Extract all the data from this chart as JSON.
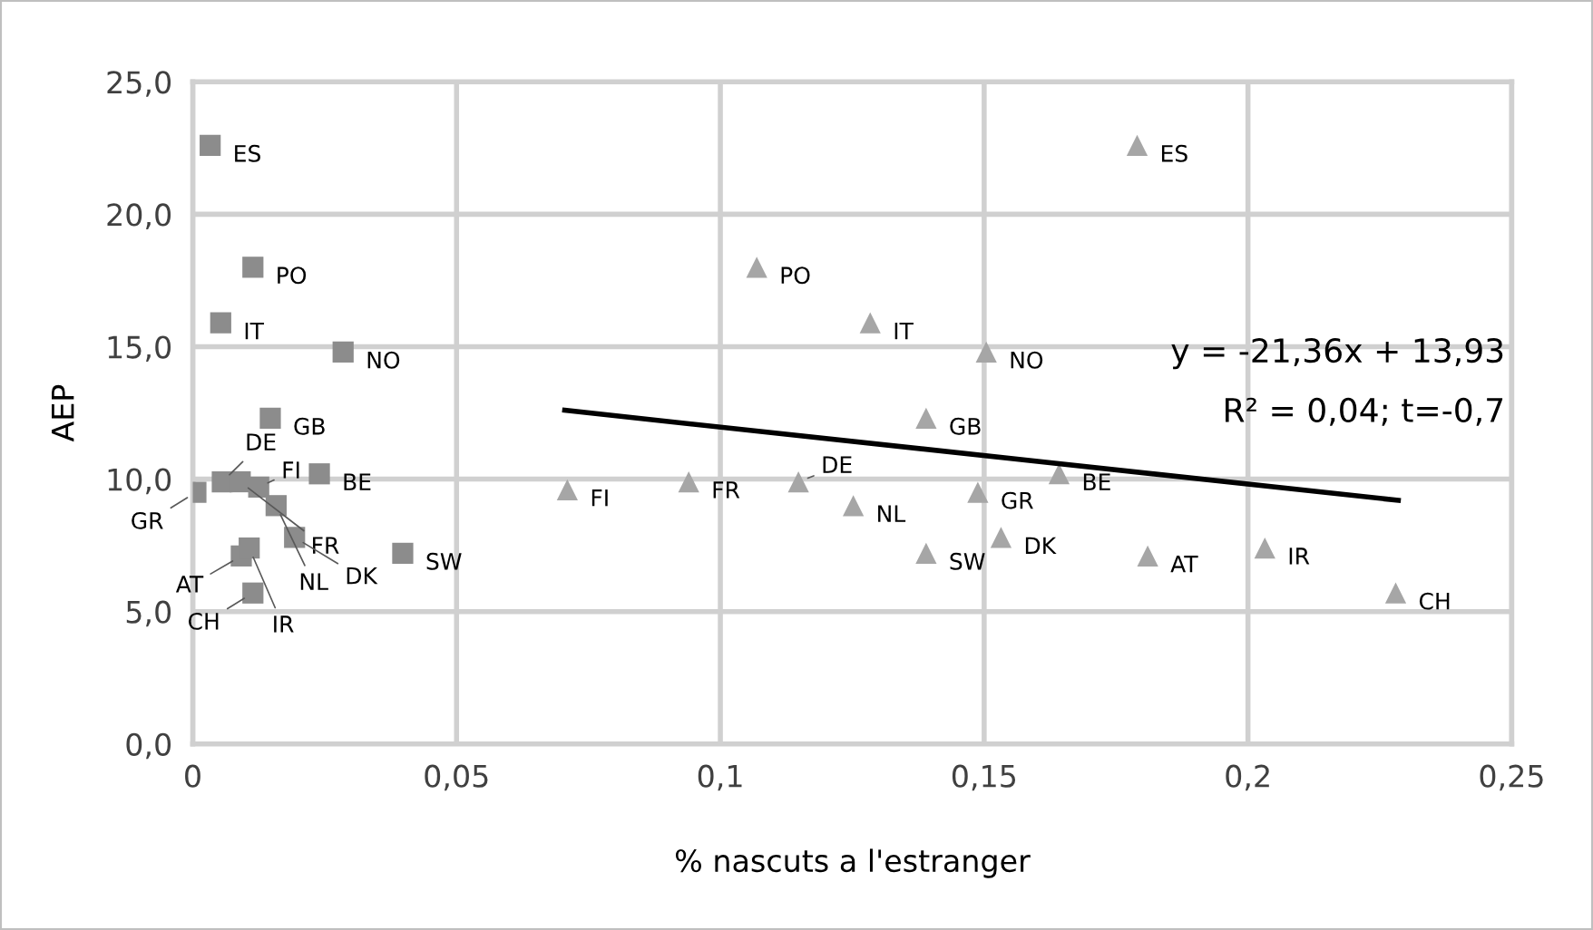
{
  "chart_data": {
    "type": "scatter",
    "xlabel": "% nascuts a l'estranger",
    "ylabel": "AEP",
    "xlim": [
      0,
      0.25
    ],
    "ylim": [
      0,
      25
    ],
    "xticks": [
      {
        "value": 0,
        "label": "0"
      },
      {
        "value": 0.05,
        "label": "0,05"
      },
      {
        "value": 0.1,
        "label": "0,1"
      },
      {
        "value": 0.15,
        "label": "0,15"
      },
      {
        "value": 0.2,
        "label": "0,2"
      },
      {
        "value": 0.25,
        "label": "0,25"
      }
    ],
    "yticks": [
      {
        "value": 0,
        "label": "0,0"
      },
      {
        "value": 5,
        "label": "5,0"
      },
      {
        "value": 10,
        "label": "10,0"
      },
      {
        "value": 15,
        "label": "15,0"
      },
      {
        "value": 20,
        "label": "20,0"
      },
      {
        "value": 25,
        "label": "25,0"
      }
    ],
    "grid": true,
    "legend": false,
    "series": [
      {
        "marker": "square",
        "color": "#8c8c8c",
        "x": [
          0.0033,
          0.0114,
          0.0053,
          0.0285,
          0.0147,
          0.024,
          0.0056,
          0.009,
          0.0006,
          0.0125,
          0.0158,
          0.0193,
          0.0092,
          0.0107,
          0.0114,
          0.0398
        ],
        "values": [
          22.6,
          18.0,
          15.9,
          14.8,
          12.3,
          10.2,
          9.9,
          9.9,
          9.5,
          9.7,
          9.0,
          7.8,
          7.1,
          7.4,
          5.7,
          7.2
        ]
      },
      {
        "marker": "triangle",
        "color": "#a6a6a6",
        "x": [
          0.179,
          0.1069,
          0.1284,
          0.1504,
          0.139,
          0.1642,
          0.1148,
          0.094,
          0.1488,
          0.071,
          0.1252,
          0.1532,
          0.181,
          0.2032,
          0.228,
          0.139
        ],
        "values": [
          22.6,
          18.0,
          15.9,
          14.8,
          12.3,
          10.2,
          9.9,
          9.9,
          9.5,
          9.6,
          9.0,
          7.8,
          7.1,
          7.4,
          5.7,
          7.2
        ]
      },
      {
        "type": "line",
        "color": "#000000",
        "x": [
          0.0705,
          0.2285
        ],
        "values": [
          12.6,
          9.2
        ]
      }
    ],
    "annotations": [
      {
        "text": "ES",
        "x": 0.0033,
        "y": 22.6
      },
      {
        "text": "PO",
        "x": 0.0114,
        "y": 18.0
      },
      {
        "text": "IT",
        "x": 0.0053,
        "y": 15.9
      },
      {
        "text": "NO",
        "x": 0.0285,
        "y": 14.8
      },
      {
        "text": "GB",
        "x": 0.0147,
        "y": 12.3
      },
      {
        "text": "BE",
        "x": 0.024,
        "y": 10.2
      },
      {
        "text": "DE",
        "x": 0.0056,
        "y": 9.9
      },
      {
        "text": "FR",
        "x": 0.009,
        "y": 9.9
      },
      {
        "text": "GR",
        "x": 0.0006,
        "y": 9.5
      },
      {
        "text": "FI",
        "x": 0.0125,
        "y": 9.7
      },
      {
        "text": "NL",
        "x": 0.0158,
        "y": 9.0
      },
      {
        "text": "DK",
        "x": 0.0193,
        "y": 7.8
      },
      {
        "text": "AT",
        "x": 0.0092,
        "y": 7.1
      },
      {
        "text": "IR",
        "x": 0.0107,
        "y": 7.4
      },
      {
        "text": "CH",
        "x": 0.0114,
        "y": 5.7
      },
      {
        "text": "SW",
        "x": 0.0398,
        "y": 7.2
      },
      {
        "text": "ES",
        "x": 0.179,
        "y": 22.6
      },
      {
        "text": "PO",
        "x": 0.1069,
        "y": 18.0
      },
      {
        "text": "IT",
        "x": 0.1284,
        "y": 15.9
      },
      {
        "text": "NO",
        "x": 0.1504,
        "y": 14.8
      },
      {
        "text": "GB",
        "x": 0.139,
        "y": 12.3
      },
      {
        "text": "BE",
        "x": 0.1642,
        "y": 10.2
      },
      {
        "text": "DE",
        "x": 0.1148,
        "y": 9.9
      },
      {
        "text": "FR",
        "x": 0.094,
        "y": 9.9
      },
      {
        "text": "GR",
        "x": 0.1488,
        "y": 9.5
      },
      {
        "text": "FI",
        "x": 0.071,
        "y": 9.6
      },
      {
        "text": "NL",
        "x": 0.1252,
        "y": 9.0
      },
      {
        "text": "DK",
        "x": 0.1532,
        "y": 7.8
      },
      {
        "text": "AT",
        "x": 0.181,
        "y": 7.1
      },
      {
        "text": "IR",
        "x": 0.2032,
        "y": 7.4
      },
      {
        "text": "CH",
        "x": 0.228,
        "y": 5.7
      },
      {
        "text": "SW",
        "x": 0.139,
        "y": 7.2
      },
      "y = -21,36x + 13,93",
      "R² = 0,04; t=-0,7"
    ]
  }
}
